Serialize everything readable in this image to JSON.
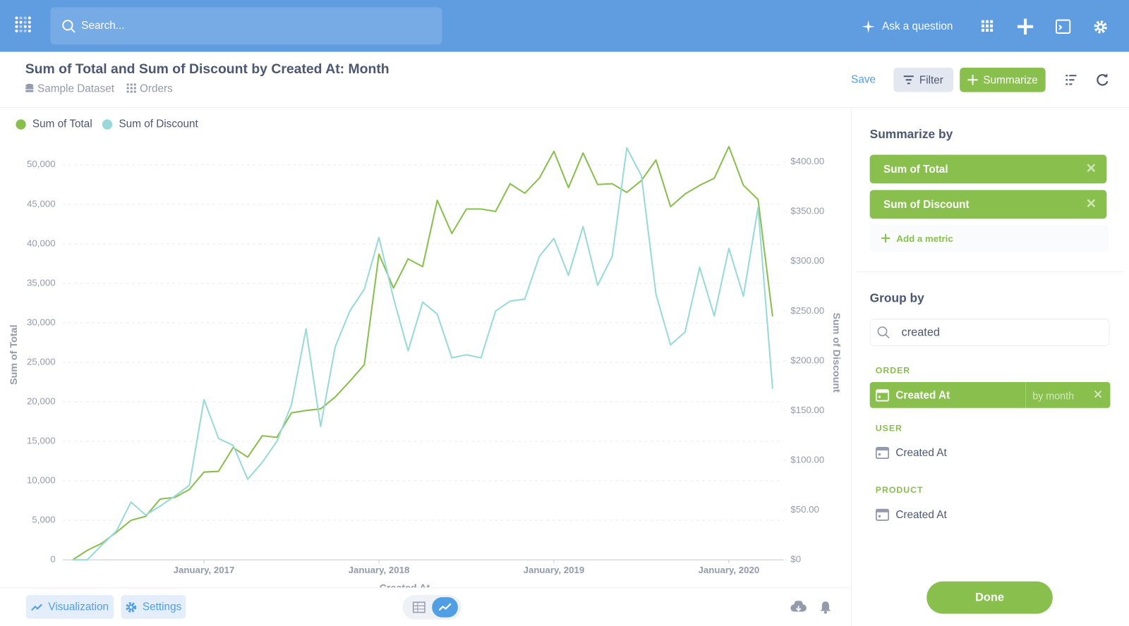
{
  "ui": {
    "search_placeholder": "Search...",
    "ask": "Ask a question",
    "title": "Sum of Total and Sum of Discount by Created At: Month",
    "breadcrumbs": [
      "Sample Dataset",
      "Orders"
    ],
    "save": "Save",
    "filter": "Filter",
    "summarize": "Summarize",
    "visualization": "Visualization",
    "settings": "Settings",
    "sidebar": {
      "summarize_by": "Summarize by",
      "metrics": [
        "Sum of Total",
        "Sum of Discount"
      ],
      "add_metric": "Add a metric",
      "group_by": "Group by",
      "search_value": "created",
      "groups": [
        {
          "name": "ORDER",
          "field": "Created At",
          "binning": "by month"
        },
        {
          "name": "USER",
          "field": "Created At"
        },
        {
          "name": "PRODUCT",
          "field": "Created At"
        }
      ],
      "done": "Done"
    }
  },
  "chart_data": {
    "type": "line",
    "categories": [
      null,
      null,
      null,
      null,
      null,
      null,
      null,
      null,
      null,
      "January, 2017",
      null,
      null,
      null,
      null,
      null,
      null,
      null,
      null,
      null,
      null,
      null,
      "January, 2018",
      null,
      null,
      null,
      null,
      null,
      null,
      null,
      null,
      null,
      null,
      null,
      "January, 2019",
      null,
      null,
      null,
      null,
      null,
      null,
      null,
      null,
      null,
      null,
      null,
      "January, 2020",
      null,
      null,
      null
    ],
    "series": [
      {
        "name": "Sum of Total",
        "color": "#88bf4d",
        "axis": "y",
        "values": [
          0,
          1200,
          2100,
          3500,
          5000,
          5500,
          7700,
          7900,
          8900,
          11100,
          11200,
          14200,
          13000,
          15700,
          15500,
          18600,
          18900,
          19100,
          20600,
          22600,
          24700,
          38700,
          34400,
          38100,
          37100,
          45500,
          41300,
          44400,
          44400,
          44100,
          47600,
          46400,
          48300,
          51700,
          47100,
          51500,
          47500,
          47600,
          46500,
          48000,
          50600,
          44700,
          46300,
          47400,
          48300,
          52300,
          47400,
          45600,
          30800
        ]
      },
      {
        "name": "Sum of Discount",
        "color": "#98d9d9",
        "axis": "y2",
        "values": [
          0,
          0,
          15,
          29,
          58,
          45,
          54,
          64,
          75,
          161,
          122,
          115,
          81,
          98,
          119,
          156,
          232,
          134,
          214,
          250,
          272,
          324,
          263,
          210,
          259,
          247,
          203,
          206,
          203,
          250,
          260,
          262,
          305,
          323,
          286,
          335,
          276,
          305,
          414,
          386,
          267,
          216,
          229,
          294,
          245,
          313,
          265,
          354,
          172
        ]
      }
    ],
    "x_label": "Created At",
    "y_label": "Sum of Total",
    "y2_label": "Sum of Discount",
    "ylim": [
      0,
      52640
    ],
    "yticks": [
      0,
      {
        "value": 5000,
        "label": "5,000"
      },
      {
        "value": 10000,
        "label": "10,000"
      },
      {
        "value": 15000,
        "label": "15,000"
      },
      {
        "value": 20000,
        "label": "20,000"
      },
      {
        "value": 25000,
        "label": "25,000"
      },
      {
        "value": 30000,
        "label": "30,000"
      },
      {
        "value": 35000,
        "label": "35,000"
      },
      {
        "value": 40000,
        "label": "40,000"
      },
      {
        "value": 45000,
        "label": "45,000"
      },
      {
        "value": 50000,
        "label": "50,000"
      }
    ],
    "y2lim": [
      0,
      418
    ],
    "y2ticks": [
      {
        "value": 0,
        "label": "$0"
      },
      {
        "value": 50,
        "label": "$50.00"
      },
      {
        "value": 100,
        "label": "$100.00"
      },
      {
        "value": 150,
        "label": "$150.00"
      },
      {
        "value": 200,
        "label": "$200.00"
      },
      {
        "value": 250,
        "label": "$250.00"
      },
      {
        "value": 300,
        "label": "$300.00"
      },
      {
        "value": 350,
        "label": "$350.00"
      },
      {
        "value": 400,
        "label": "$400.00"
      }
    ],
    "grid": true,
    "legend": "top-left"
  }
}
